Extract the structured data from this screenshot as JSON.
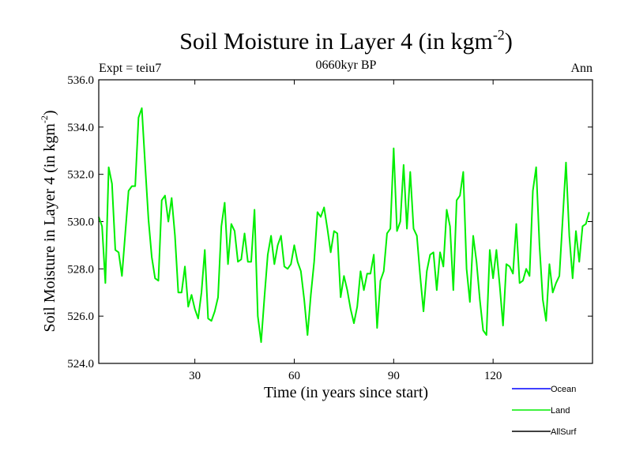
{
  "chart_data": {
    "type": "line",
    "title_main": "Soil Moisture in Layer 4 (in kgm",
    "title_sup": "-2",
    "title_close": ")",
    "subtitle": "0660kyr BP",
    "left_label": "Expt = teiu7",
    "right_label": "Ann",
    "xlabel": "Time (in years since start)",
    "ylabel_main": "Soil Moisture in Layer 4 (in kgm",
    "ylabel_sup": "-2",
    "ylabel_close": ")",
    "xlim": [
      1,
      150
    ],
    "ylim": [
      524,
      536
    ],
    "x_ticks": [
      30,
      60,
      90,
      120
    ],
    "x_tick_labels": [
      "30",
      "60",
      "90",
      "120"
    ],
    "y_ticks": [
      524,
      526,
      528,
      530,
      532,
      534,
      536
    ],
    "y_tick_labels": [
      "524.0",
      "526.0",
      "528.0",
      "530.0",
      "532.0",
      "534.0",
      "536.0"
    ],
    "legend": [
      {
        "name": "Ocean",
        "color": "#0000ff"
      },
      {
        "name": "Land",
        "color": "#00ee00"
      },
      {
        "name": "AllSurf",
        "color": "#000000"
      }
    ],
    "series": [
      {
        "name": "Land",
        "color": "#00ee00",
        "values": [
          530.2,
          529.8,
          527.4,
          532.3,
          531.6,
          528.8,
          528.7,
          527.7,
          529.5,
          531.3,
          531.5,
          531.5,
          534.4,
          534.8,
          532.4,
          530.1,
          528.5,
          527.6,
          527.5,
          530.9,
          531.1,
          530.0,
          531.0,
          529.4,
          527.0,
          527.0,
          528.1,
          526.4,
          526.9,
          526.3,
          525.9,
          527.0,
          528.8,
          525.9,
          525.8,
          526.2,
          526.8,
          529.8,
          530.8,
          528.2,
          529.9,
          529.6,
          528.3,
          528.4,
          529.5,
          528.3,
          528.3,
          530.5,
          526.0,
          524.9,
          526.8,
          528.6,
          529.4,
          528.2,
          529.0,
          529.4,
          528.1,
          528.0,
          528.2,
          529.0,
          528.3,
          527.9,
          526.7,
          525.2,
          526.9,
          528.3,
          530.4,
          530.2,
          530.6,
          529.7,
          528.7,
          529.6,
          529.5,
          526.8,
          527.7,
          527.1,
          526.3,
          525.7,
          526.4,
          527.9,
          527.1,
          527.8,
          527.8,
          528.6,
          525.5,
          527.5,
          527.9,
          529.5,
          529.7,
          533.1,
          529.6,
          530.0,
          532.4,
          529.7,
          532.1,
          529.7,
          529.4,
          527.7,
          526.2,
          527.9,
          528.6,
          528.7,
          527.1,
          528.7,
          528.1,
          530.5,
          529.8,
          527.1,
          530.9,
          531.1,
          532.1,
          528.0,
          526.6,
          529.4,
          528.3,
          526.7,
          525.4,
          525.2,
          528.8,
          527.6,
          528.8,
          527.3,
          525.6,
          528.2,
          528.1,
          527.8,
          529.9,
          527.4,
          527.5,
          528.0,
          527.7,
          531.3,
          532.3,
          529.0,
          526.7,
          525.8,
          528.2,
          527.0,
          527.4,
          527.7,
          530.1,
          532.5,
          529.4,
          527.6,
          529.6,
          528.3,
          529.8,
          529.9,
          530.4
        ]
      }
    ]
  }
}
